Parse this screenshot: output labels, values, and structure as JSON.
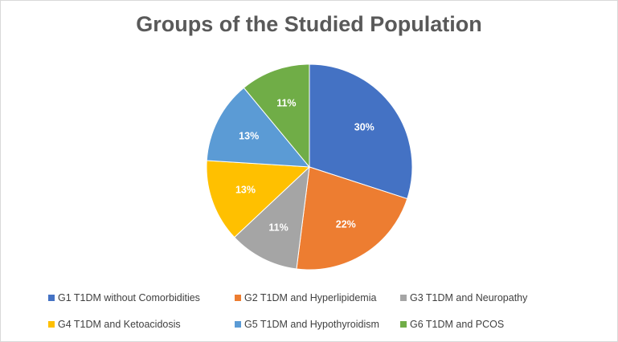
{
  "chart_data": {
    "type": "pie",
    "title": "Groups of the Studied Population",
    "legend_position": "bottom",
    "slices": [
      {
        "name": "G1 T1DM without Comorbidities",
        "value": 30,
        "label": "30%",
        "color": "#4472C4"
      },
      {
        "name": "G2 T1DM and Hyperlipidemia",
        "value": 22,
        "label": "22%",
        "color": "#ED7D31"
      },
      {
        "name": "G3 T1DM and Neuropathy",
        "value": 11,
        "label": "11%",
        "color": "#A5A5A5"
      },
      {
        "name": "G4 T1DM and Ketoacidosis",
        "value": 13,
        "label": "13%",
        "color": "#FFC000"
      },
      {
        "name": "G5 T1DM and Hypothyroidism",
        "value": 13,
        "label": "13%",
        "color": "#5B9BD5"
      },
      {
        "name": "G6 T1DM and PCOS",
        "value": 11,
        "label": "11%",
        "color": "#70AD47"
      }
    ]
  }
}
